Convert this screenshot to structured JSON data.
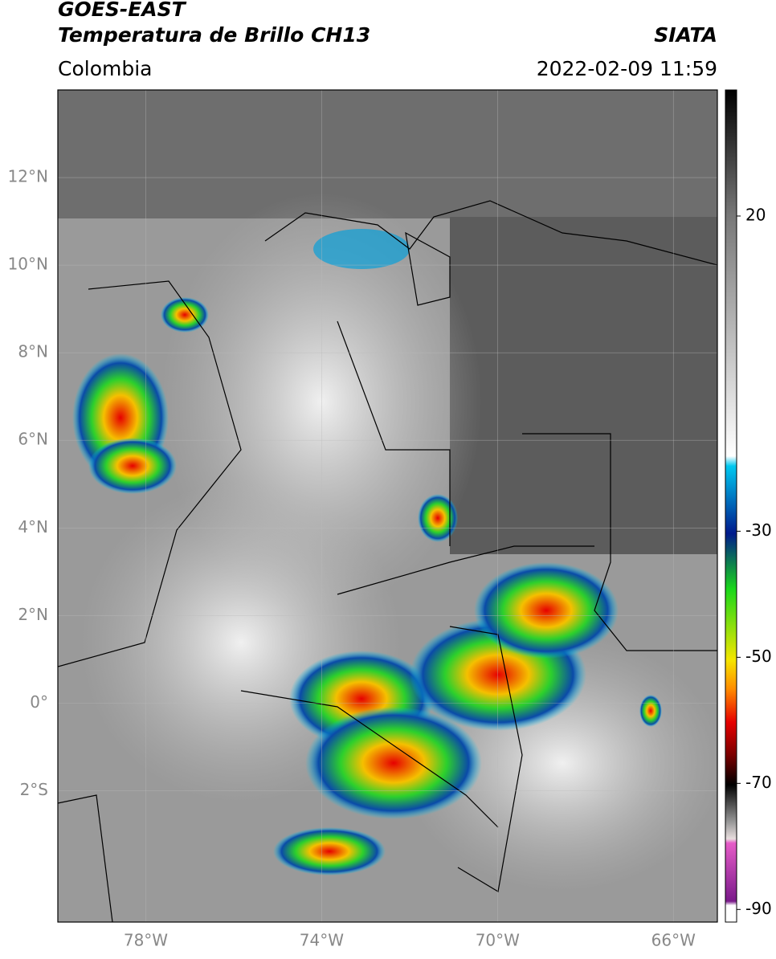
{
  "header": {
    "title": "GOES-EAST",
    "subtitle": "Temperatura de Brillo CH13",
    "source": "SIATA",
    "region": "Colombia",
    "timestamp": "2022-02-09 11:59"
  },
  "map": {
    "xlim": [
      -80,
      -65
    ],
    "ylim": [
      -5,
      14
    ],
    "yticks": [
      {
        "value": 12,
        "label": "12°N"
      },
      {
        "value": 10,
        "label": "10°N"
      },
      {
        "value": 8,
        "label": "8°N"
      },
      {
        "value": 6,
        "label": "6°N"
      },
      {
        "value": 4,
        "label": "4°N"
      },
      {
        "value": 2,
        "label": "2°N"
      },
      {
        "value": 0,
        "label": "0°"
      },
      {
        "value": -2,
        "label": "2°S"
      }
    ],
    "xticks": [
      {
        "value": -78,
        "label": "78°W"
      },
      {
        "value": -74,
        "label": "74°W"
      },
      {
        "value": -70,
        "label": "70°W"
      },
      {
        "value": -66,
        "label": "66°W"
      }
    ],
    "grid": true
  },
  "colorbar": {
    "lim": [
      -92,
      40
    ],
    "ticks": [
      20,
      -30,
      -50,
      -70,
      -90
    ]
  }
}
